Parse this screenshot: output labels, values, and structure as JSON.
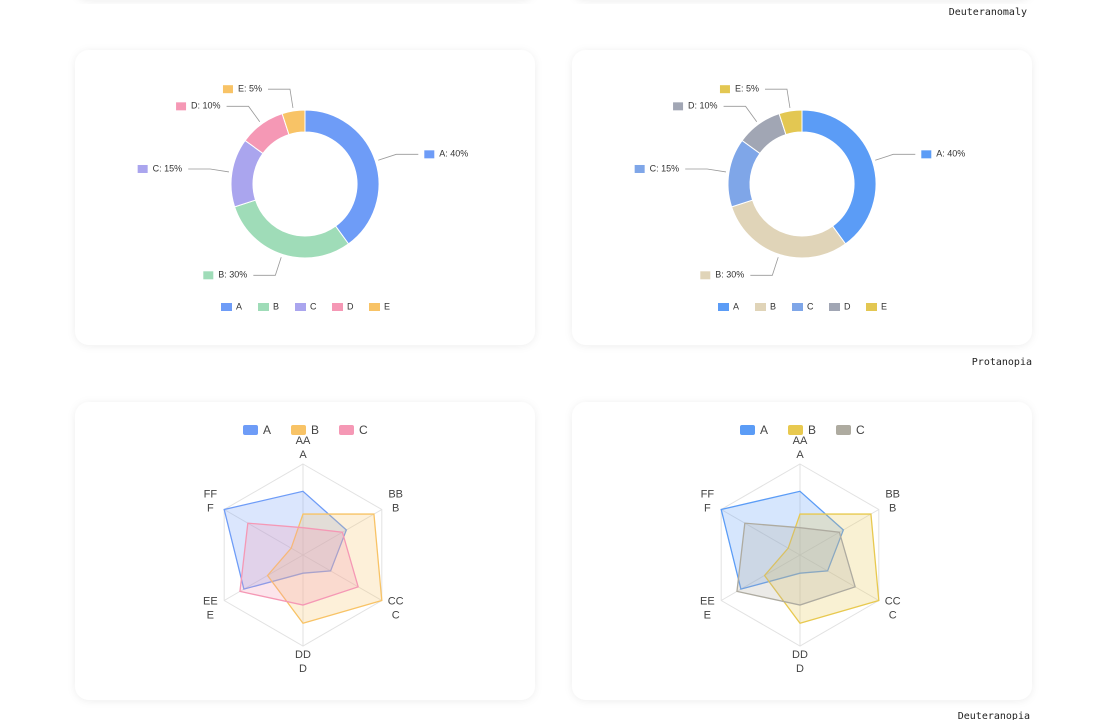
{
  "captions": [
    "Deuteranomaly",
    "Protanopia",
    "Deuteranopia"
  ],
  "chart_data": [
    {
      "type": "pie",
      "categories": [
        "A",
        "B",
        "C",
        "D",
        "E"
      ],
      "values": [
        40,
        30,
        15,
        10,
        5
      ],
      "value_labels": [
        "A: 40%",
        "B: 30%",
        "C: 15%",
        "D: 10%",
        "E: 5%"
      ],
      "colors": [
        "#6e9cf7",
        "#9fdcb8",
        "#aaa5ee",
        "#f598b5",
        "#f8c366"
      ],
      "legend": "bottom"
    },
    {
      "type": "pie",
      "categories": [
        "A",
        "B",
        "C",
        "D",
        "E"
      ],
      "values": [
        40,
        30,
        15,
        10,
        5
      ],
      "value_labels": [
        "A: 40%",
        "B: 30%",
        "C: 15%",
        "D: 10%",
        "E: 5%"
      ],
      "colors": [
        "#5b9cf6",
        "#e0d4b8",
        "#7fa6e8",
        "#a1a6b4",
        "#e3c752"
      ],
      "legend": "bottom"
    },
    {
      "type": "radar",
      "indicators": [
        [
          "AA",
          "A"
        ],
        [
          "BB",
          "B"
        ],
        [
          "CC",
          "C"
        ],
        [
          "DD",
          "D"
        ],
        [
          "EE",
          "E"
        ],
        [
          "FF",
          "F"
        ]
      ],
      "rlim": [
        0,
        100
      ],
      "rticks": [
        20,
        40,
        60,
        80,
        100
      ],
      "legend": "top",
      "series": [
        {
          "name": "A",
          "color": "#6e9cf7",
          "values": [
            70,
            55,
            35,
            20,
            75,
            100
          ]
        },
        {
          "name": "B",
          "color": "#f8c366",
          "values": [
            45,
            90,
            100,
            75,
            45,
            15
          ]
        },
        {
          "name": "C",
          "color": "#f598b5",
          "values": [
            30,
            50,
            70,
            55,
            80,
            70
          ]
        }
      ]
    },
    {
      "type": "radar",
      "indicators": [
        [
          "AA",
          "A"
        ],
        [
          "BB",
          "B"
        ],
        [
          "CC",
          "C"
        ],
        [
          "DD",
          "D"
        ],
        [
          "EE",
          "E"
        ],
        [
          "FF",
          "F"
        ]
      ],
      "rlim": [
        0,
        100
      ],
      "rticks": [
        20,
        40,
        60,
        80,
        100
      ],
      "legend": "top",
      "series": [
        {
          "name": "A",
          "color": "#5b9cf6",
          "values": [
            70,
            55,
            35,
            20,
            75,
            100
          ]
        },
        {
          "name": "B",
          "color": "#e8c94f",
          "values": [
            45,
            90,
            100,
            75,
            45,
            15
          ]
        },
        {
          "name": "C",
          "color": "#aeaba0",
          "values": [
            30,
            50,
            70,
            55,
            80,
            70
          ]
        }
      ]
    }
  ]
}
